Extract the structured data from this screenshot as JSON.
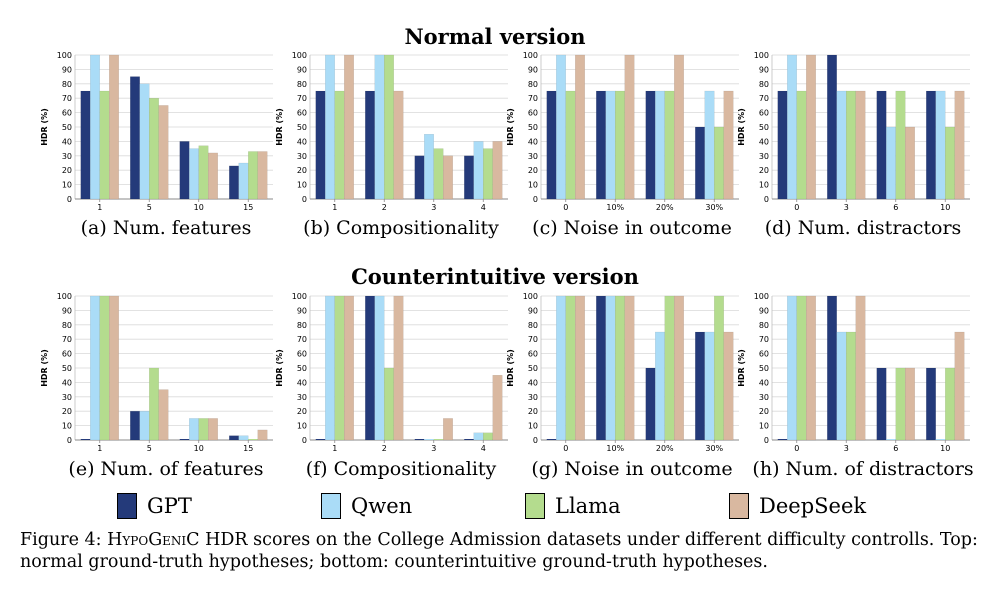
{
  "row_titles": [
    "Normal version",
    "Counterintuitive version"
  ],
  "legend": [
    {
      "name": "GPT",
      "color": "#243a7a"
    },
    {
      "name": "Qwen",
      "color": "#aadcf7"
    },
    {
      "name": "Llama",
      "color": "#b4dc8e"
    },
    {
      "name": "DeepSeek",
      "color": "#d9b8a0"
    }
  ],
  "caption": {
    "prefix": "Figure 4: ",
    "system": "HypoGeniC",
    "text": " HDR scores on the College Admission datasets under different difficulty controlls. Top: normal ground-truth hypotheses; bottom: counterintuitive ground-truth hypotheses."
  },
  "chart_data": [
    {
      "type": "bar",
      "panel": "a",
      "caption": "(a) Num. features",
      "ylabel": "HDR (%)",
      "ylim": [
        0,
        100
      ],
      "yticks": [
        0,
        10,
        20,
        30,
        40,
        50,
        60,
        70,
        80,
        90,
        100
      ],
      "categories": [
        "1",
        "5",
        "10",
        "15"
      ],
      "series": [
        {
          "name": "GPT",
          "values": [
            75,
            85,
            40,
            23
          ]
        },
        {
          "name": "Qwen",
          "values": [
            100,
            80,
            35,
            25
          ]
        },
        {
          "name": "Llama",
          "values": [
            75,
            70,
            37,
            33
          ]
        },
        {
          "name": "DeepSeek",
          "values": [
            100,
            65,
            32,
            33
          ]
        }
      ]
    },
    {
      "type": "bar",
      "panel": "b",
      "caption": "(b) Compositionality",
      "ylabel": "HDR (%)",
      "ylim": [
        0,
        100
      ],
      "yticks": [
        0,
        10,
        20,
        30,
        40,
        50,
        60,
        70,
        80,
        90,
        100
      ],
      "categories": [
        "1",
        "2",
        "3",
        "4"
      ],
      "series": [
        {
          "name": "GPT",
          "values": [
            75,
            75,
            30,
            30
          ]
        },
        {
          "name": "Qwen",
          "values": [
            100,
            100,
            45,
            40
          ]
        },
        {
          "name": "Llama",
          "values": [
            75,
            100,
            35,
            35
          ]
        },
        {
          "name": "DeepSeek",
          "values": [
            100,
            75,
            30,
            40
          ]
        }
      ]
    },
    {
      "type": "bar",
      "panel": "c",
      "caption": "(c) Noise in outcome",
      "ylabel": "HDR (%)",
      "ylim": [
        0,
        100
      ],
      "yticks": [
        0,
        10,
        20,
        30,
        40,
        50,
        60,
        70,
        80,
        90,
        100
      ],
      "categories": [
        "0",
        "10%",
        "20%",
        "30%"
      ],
      "series": [
        {
          "name": "GPT",
          "values": [
            75,
            75,
            75,
            50
          ]
        },
        {
          "name": "Qwen",
          "values": [
            100,
            75,
            75,
            75
          ]
        },
        {
          "name": "Llama",
          "values": [
            75,
            75,
            75,
            50
          ]
        },
        {
          "name": "DeepSeek",
          "values": [
            100,
            100,
            100,
            75
          ]
        }
      ]
    },
    {
      "type": "bar",
      "panel": "d",
      "caption": "(d) Num. distractors",
      "ylabel": "HDR (%)",
      "ylim": [
        0,
        100
      ],
      "yticks": [
        0,
        10,
        20,
        30,
        40,
        50,
        60,
        70,
        80,
        90,
        100
      ],
      "categories": [
        "0",
        "3",
        "6",
        "10"
      ],
      "series": [
        {
          "name": "GPT",
          "values": [
            75,
            100,
            75,
            75
          ]
        },
        {
          "name": "Qwen",
          "values": [
            100,
            75,
            50,
            75
          ]
        },
        {
          "name": "Llama",
          "values": [
            75,
            75,
            75,
            50
          ]
        },
        {
          "name": "DeepSeek",
          "values": [
            100,
            75,
            50,
            75
          ]
        }
      ]
    },
    {
      "type": "bar",
      "panel": "e",
      "caption": "(e) Num. of features",
      "ylabel": "HDR (%)",
      "ylim": [
        0,
        100
      ],
      "yticks": [
        0,
        10,
        20,
        30,
        40,
        50,
        60,
        70,
        80,
        90,
        100
      ],
      "categories": [
        "1",
        "5",
        "10",
        "15"
      ],
      "series": [
        {
          "name": "GPT",
          "values": [
            0,
            20,
            0,
            3
          ]
        },
        {
          "name": "Qwen",
          "values": [
            100,
            20,
            15,
            3
          ]
        },
        {
          "name": "Llama",
          "values": [
            100,
            50,
            15,
            0
          ]
        },
        {
          "name": "DeepSeek",
          "values": [
            100,
            35,
            15,
            7
          ]
        }
      ]
    },
    {
      "type": "bar",
      "panel": "f",
      "caption": "(f) Compositionality",
      "ylabel": "HDR (%)",
      "ylim": [
        0,
        100
      ],
      "yticks": [
        0,
        10,
        20,
        30,
        40,
        50,
        60,
        70,
        80,
        90,
        100
      ],
      "categories": [
        "1",
        "2",
        "3",
        "4"
      ],
      "series": [
        {
          "name": "GPT",
          "values": [
            0,
            100,
            0,
            0
          ]
        },
        {
          "name": "Qwen",
          "values": [
            100,
            100,
            0,
            5
          ]
        },
        {
          "name": "Llama",
          "values": [
            100,
            50,
            0,
            5
          ]
        },
        {
          "name": "DeepSeek",
          "values": [
            100,
            100,
            15,
            45
          ]
        }
      ]
    },
    {
      "type": "bar",
      "panel": "g",
      "caption": "(g) Noise in outcome",
      "ylabel": "HDR (%)",
      "ylim": [
        0,
        100
      ],
      "yticks": [
        0,
        10,
        20,
        30,
        40,
        50,
        60,
        70,
        80,
        90,
        100
      ],
      "categories": [
        "0",
        "10%",
        "20%",
        "30%"
      ],
      "series": [
        {
          "name": "GPT",
          "values": [
            0,
            100,
            50,
            75
          ]
        },
        {
          "name": "Qwen",
          "values": [
            100,
            100,
            75,
            75
          ]
        },
        {
          "name": "Llama",
          "values": [
            100,
            100,
            100,
            100
          ]
        },
        {
          "name": "DeepSeek",
          "values": [
            100,
            100,
            100,
            75
          ]
        }
      ]
    },
    {
      "type": "bar",
      "panel": "h",
      "caption": "(h) Num. of distractors",
      "ylabel": "HDR (%)",
      "ylim": [
        0,
        100
      ],
      "yticks": [
        0,
        10,
        20,
        30,
        40,
        50,
        60,
        70,
        80,
        90,
        100
      ],
      "categories": [
        "0",
        "3",
        "6",
        "10"
      ],
      "series": [
        {
          "name": "GPT",
          "values": [
            0,
            100,
            50,
            50
          ]
        },
        {
          "name": "Qwen",
          "values": [
            100,
            75,
            0,
            0
          ]
        },
        {
          "name": "Llama",
          "values": [
            100,
            75,
            50,
            50
          ]
        },
        {
          "name": "DeepSeek",
          "values": [
            100,
            100,
            50,
            75
          ]
        }
      ]
    }
  ]
}
